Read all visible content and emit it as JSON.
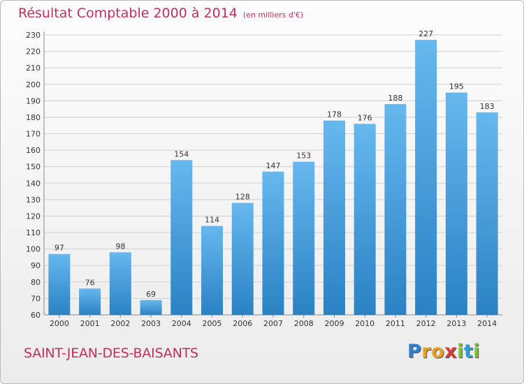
{
  "title": "Résultat Comptable 2000 à 2014",
  "subtitle": "(en milliers d'€)",
  "commune": "SAINT-JEAN-DES-BAISANTS",
  "logo": {
    "p": "P",
    "r": "r",
    "o": "o",
    "x": "x",
    "i1": "i",
    "t": "t",
    "i2": "i"
  },
  "colors": {
    "title": "#c0305a",
    "bar_top": "#66b8ee",
    "bar_bottom": "#2a82c4",
    "grid": "#cfcfcf"
  },
  "chart_data": {
    "type": "bar",
    "title": "Résultat Comptable 2000 à 2014",
    "xlabel": "",
    "ylabel": "",
    "categories": [
      "2000",
      "2001",
      "2002",
      "2003",
      "2004",
      "2005",
      "2006",
      "2007",
      "2008",
      "2009",
      "2010",
      "2011",
      "2012",
      "2013",
      "2014"
    ],
    "values": [
      97,
      76,
      98,
      69,
      154,
      114,
      128,
      147,
      153,
      178,
      176,
      188,
      227,
      195,
      183
    ],
    "ylim": [
      60,
      230
    ],
    "yticks": [
      60,
      70,
      80,
      90,
      100,
      110,
      120,
      130,
      140,
      150,
      160,
      170,
      180,
      190,
      200,
      210,
      220,
      230
    ],
    "grid": true,
    "legend": "none"
  }
}
